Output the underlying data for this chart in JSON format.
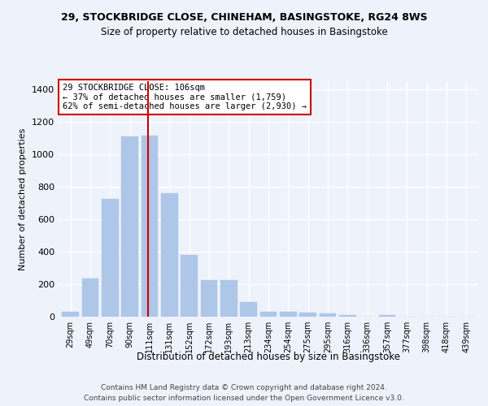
{
  "title_line1": "29, STOCKBRIDGE CLOSE, CHINEHAM, BASINGSTOKE, RG24 8WS",
  "title_line2": "Size of property relative to detached houses in Basingstoke",
  "xlabel": "Distribution of detached houses by size in Basingstoke",
  "ylabel": "Number of detached properties",
  "bar_labels": [
    "29sqm",
    "49sqm",
    "70sqm",
    "90sqm",
    "111sqm",
    "131sqm",
    "152sqm",
    "172sqm",
    "193sqm",
    "213sqm",
    "234sqm",
    "254sqm",
    "275sqm",
    "295sqm",
    "316sqm",
    "336sqm",
    "357sqm",
    "377sqm",
    "398sqm",
    "418sqm",
    "439sqm"
  ],
  "bar_values": [
    30,
    235,
    725,
    1110,
    1115,
    760,
    380,
    225,
    225,
    90,
    30,
    28,
    23,
    18,
    12,
    0,
    12,
    0,
    0,
    0,
    0
  ],
  "bar_color": "#aec6e8",
  "bar_edgecolor": "#aec6e8",
  "vline_color": "#cc0000",
  "annotation_text": "29 STOCKBRIDGE CLOSE: 106sqm\n← 37% of detached houses are smaller (1,759)\n62% of semi-detached houses are larger (2,930) →",
  "annotation_box_color": "#cc0000",
  "ylim": [
    0,
    1450
  ],
  "yticks": [
    0,
    200,
    400,
    600,
    800,
    1000,
    1200,
    1400
  ],
  "background_color": "#eef2fb",
  "grid_color": "#ffffff",
  "footer_line1": "Contains HM Land Registry data © Crown copyright and database right 2024.",
  "footer_line2": "Contains public sector information licensed under the Open Government Licence v3.0."
}
